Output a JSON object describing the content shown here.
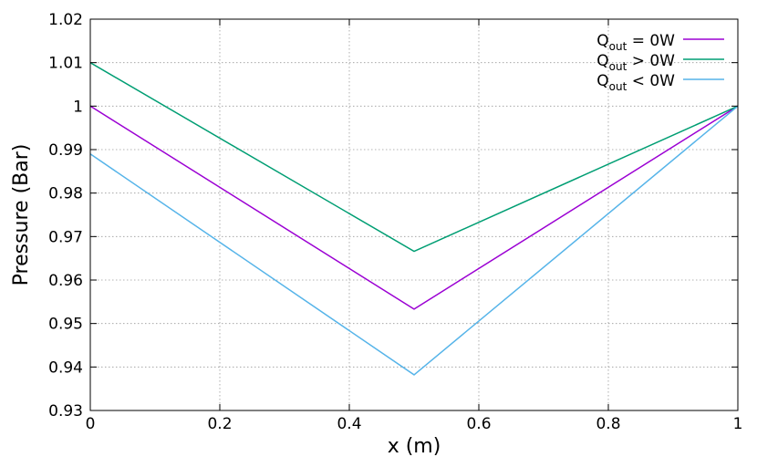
{
  "chart_data": {
    "type": "line",
    "title": "",
    "xlabel": "x (m)",
    "ylabel": "Pressure (Bar)",
    "xlim": [
      0,
      1
    ],
    "ylim": [
      0.93,
      1.02
    ],
    "grid": true,
    "legend_position": "top-right",
    "xticks": [
      "0",
      "0.2",
      "0.4",
      "0.6",
      "0.8",
      "1"
    ],
    "yticks": [
      "0.93",
      "0.94",
      "0.95",
      "0.96",
      "0.97",
      "0.98",
      "0.99",
      "1",
      "1.01",
      "1.02"
    ],
    "series": [
      {
        "name_base": "Q",
        "name_sub": "out",
        "name_rest": " = 0W",
        "color": "#9b00d3",
        "x": [
          0,
          0.5,
          1
        ],
        "y": [
          1.0,
          0.9533,
          1.0
        ]
      },
      {
        "name_base": "Q",
        "name_sub": "out",
        "name_rest": " > 0W",
        "color": "#009e73",
        "x": [
          0,
          0.5,
          1
        ],
        "y": [
          1.01,
          0.9666,
          1.0
        ]
      },
      {
        "name_base": "Q",
        "name_sub": "out",
        "name_rest": " < 0W",
        "color": "#56b4e9",
        "x": [
          0,
          0.5,
          1
        ],
        "y": [
          0.989,
          0.9382,
          1.0
        ]
      }
    ]
  }
}
